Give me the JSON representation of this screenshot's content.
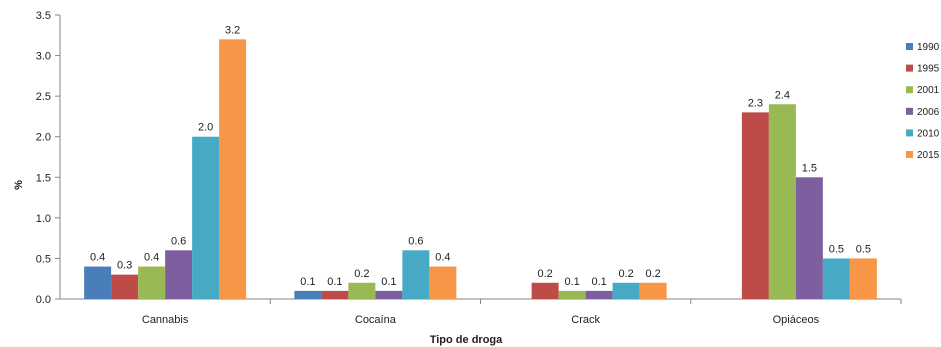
{
  "chart_data": {
    "type": "bar",
    "xlabel": "Tipo de droga",
    "ylabel": "%",
    "ylim": [
      0,
      3.5
    ],
    "yticks": [
      "0.0",
      "0.5",
      "1.0",
      "1.5",
      "2.0",
      "2.5",
      "3.0",
      "3.5"
    ],
    "categories": [
      "Cannabis",
      "Cocaína",
      "Crack",
      "Opiáceos"
    ],
    "grid": false,
    "legend_position": "right",
    "series": [
      {
        "name": "1990",
        "color": "#4a7ebb",
        "values": [
          0.4,
          0.1,
          null,
          null
        ],
        "labels": [
          "0.4",
          "0.1",
          "",
          ""
        ]
      },
      {
        "name": "1995",
        "color": "#be4b48",
        "values": [
          0.3,
          0.1,
          0.2,
          2.3
        ],
        "labels": [
          "0.3",
          "0.1",
          "0.2",
          "2.3"
        ]
      },
      {
        "name": "2001",
        "color": "#98b954",
        "values": [
          0.4,
          0.2,
          0.1,
          2.4
        ],
        "labels": [
          "0.4",
          "0.2",
          "0.1",
          "2.4"
        ]
      },
      {
        "name": "2006",
        "color": "#7d5fa0",
        "values": [
          0.6,
          0.1,
          0.1,
          1.5
        ],
        "labels": [
          "0.6",
          "0.1",
          "0.1",
          "1.5"
        ]
      },
      {
        "name": "2010",
        "color": "#46aac5",
        "values": [
          2.0,
          0.6,
          0.2,
          0.5
        ],
        "labels": [
          "2.0",
          "0.6",
          "0.2",
          "0.5"
        ]
      },
      {
        "name": "2015",
        "color": "#f79646",
        "values": [
          3.2,
          0.4,
          0.2,
          0.5
        ],
        "labels": [
          "3.2",
          "0.4",
          "0.2",
          "0.5"
        ]
      }
    ]
  }
}
